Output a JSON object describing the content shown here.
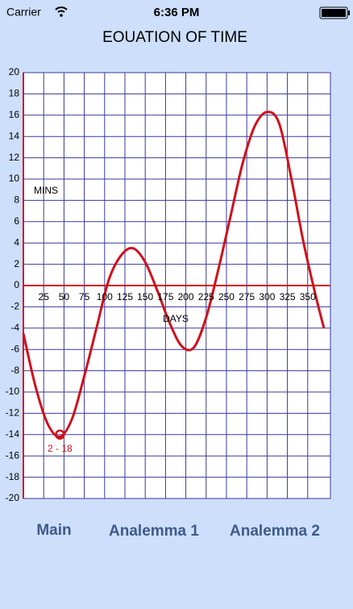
{
  "status_bar": {
    "carrier": "Carrier",
    "time": "6:36 PM"
  },
  "chart_data": {
    "type": "line",
    "title": "EOUATION OF TIME",
    "x_label": "DAYS",
    "y_label": "MINS",
    "x": [
      0,
      15,
      30,
      45,
      60,
      75,
      90,
      105,
      120,
      135,
      150,
      165,
      180,
      195,
      210,
      225,
      240,
      255,
      270,
      285,
      300,
      315,
      330,
      345,
      360,
      370
    ],
    "series": [
      {
        "color": "#d0101c",
        "values": [
          -4.5,
          -9.5,
          -13,
          -14.2,
          -12.5,
          -8.5,
          -4,
          0.5,
          2.8,
          3.5,
          2.2,
          -0.5,
          -3.5,
          -5.7,
          -5.8,
          -3,
          1.5,
          6.5,
          11.5,
          15,
          16.3,
          15.2,
          10,
          4,
          -1,
          -4
        ]
      }
    ],
    "highlight": {
      "x": 45,
      "y": -14,
      "label": "2 - 18"
    },
    "xlim": [
      0,
      378
    ],
    "ylim": [
      -20,
      20
    ],
    "xticks": [
      25,
      50,
      75,
      100,
      125,
      150,
      175,
      200,
      225,
      250,
      275,
      300,
      325,
      350
    ],
    "yticks": [
      -20,
      -18,
      -16,
      -14,
      -12,
      -10,
      -8,
      -6,
      -4,
      -2,
      0,
      2,
      4,
      6,
      8,
      10,
      12,
      14,
      16,
      18,
      20
    ],
    "grid": true
  },
  "tabs": [
    "Main",
    "Analemma 1",
    "Analemma 2"
  ]
}
